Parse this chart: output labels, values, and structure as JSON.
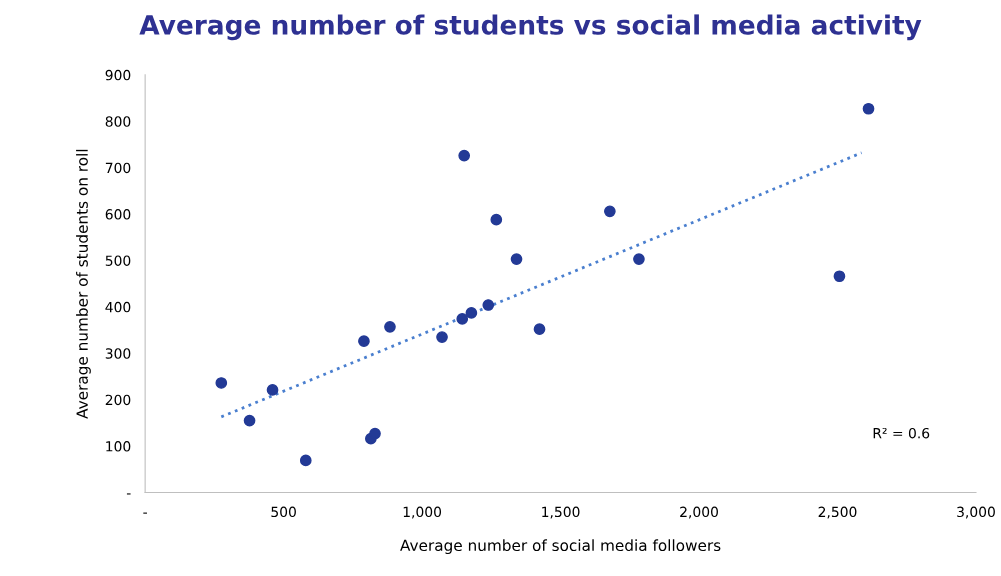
{
  "chart_data": {
    "type": "scatter",
    "title": "Average number of students vs social media activity",
    "xlabel": "Average number of social media followers",
    "ylabel": "Average number of students on roll",
    "series": [
      {
        "color": "#233a96",
        "marker": "circle",
        "x": [
          275,
          377,
          460,
          580,
          790,
          815,
          830,
          884,
          1072,
          1152,
          1145,
          1178,
          1239,
          1268,
          1341,
          1424,
          1678,
          1783,
          2507,
          2612
        ],
        "values": [
          236,
          155,
          221,
          69,
          326,
          116,
          127,
          357,
          335,
          726,
          374,
          387,
          404,
          588,
          503,
          352,
          606,
          503,
          466,
          827
        ]
      },
      {
        "type": "line",
        "color": "#4a7fcf",
        "line_style": "dotted",
        "marker": "none",
        "x": [
          275,
          2587
        ],
        "values": [
          163,
          732
        ]
      }
    ],
    "xlim": [
      0,
      3000
    ],
    "xticks": [
      {
        "value": 0,
        "label": "-"
      },
      {
        "value": 500,
        "label": "500"
      },
      {
        "value": 1000,
        "label": "1,000"
      },
      {
        "value": 1500,
        "label": "1,500"
      },
      {
        "value": 2000,
        "label": "2,000"
      },
      {
        "value": 2500,
        "label": "2,500"
      },
      {
        "value": 3000,
        "label": "3,000"
      }
    ],
    "ylim": [
      0,
      900
    ],
    "yticks": [
      {
        "value": 0,
        "label": "-"
      },
      100,
      200,
      300,
      400,
      500,
      600,
      700,
      800,
      900
    ],
    "grid": false,
    "legend": false,
    "annotations": [
      "R² = 0.6"
    ]
  }
}
